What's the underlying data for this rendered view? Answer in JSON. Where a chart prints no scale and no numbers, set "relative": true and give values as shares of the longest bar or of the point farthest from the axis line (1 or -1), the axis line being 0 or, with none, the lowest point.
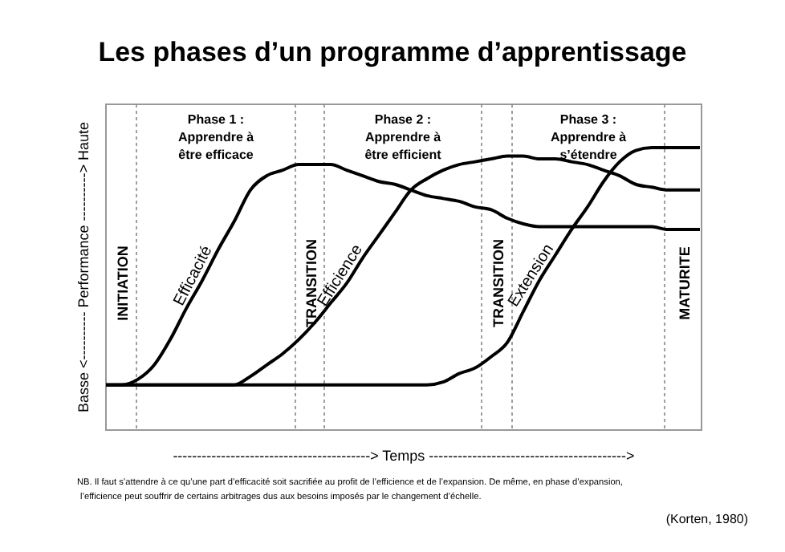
{
  "chart_data": {
    "type": "line",
    "title": "Les phases d’un programme d’apprentissage",
    "xlabel": "-----------------------------------------> Temps ----------------------------------------->",
    "ylabel": "Basse <---------- Performance ----------> Haute",
    "relative": true,
    "legend": false,
    "line_style": "solid",
    "marker": "none",
    "categories": [
      null,
      null,
      null,
      null,
      null,
      null,
      null,
      null,
      null,
      null,
      null,
      null,
      null,
      null,
      null,
      null,
      null,
      null,
      null,
      null,
      null,
      null,
      null,
      null,
      null,
      null,
      null,
      null,
      null,
      null,
      null,
      null,
      null,
      null,
      null,
      null,
      null,
      null
    ],
    "series": [
      {
        "name": "Efficacité",
        "color": "#000000",
        "values": [
          0.16,
          0.16,
          0.18,
          0.23,
          0.32,
          0.43,
          0.53,
          0.64,
          0.74,
          0.85,
          0.9,
          0.92,
          0.94,
          0.94,
          0.94,
          0.92,
          0.9,
          0.88,
          0.87,
          0.85,
          0.83,
          0.82,
          0.81,
          0.79,
          0.78,
          0.75,
          0.73,
          0.72,
          0.72,
          0.72,
          0.72,
          0.72,
          0.72,
          0.72,
          0.72,
          0.71,
          0.71,
          0.71
        ]
      },
      {
        "name": "Efficience",
        "color": "#000000",
        "values": [
          0.16,
          0.16,
          0.16,
          0.16,
          0.16,
          0.16,
          0.16,
          0.16,
          0.16,
          0.19,
          0.23,
          0.27,
          0.32,
          0.38,
          0.45,
          0.52,
          0.61,
          0.69,
          0.77,
          0.85,
          0.89,
          0.92,
          0.94,
          0.95,
          0.96,
          0.97,
          0.97,
          0.96,
          0.96,
          0.95,
          0.94,
          0.92,
          0.9,
          0.87,
          0.86,
          0.85,
          0.85,
          0.85
        ]
      },
      {
        "name": "Extension",
        "color": "#000000",
        "values": [
          0.16,
          0.16,
          0.16,
          0.16,
          0.16,
          0.16,
          0.16,
          0.16,
          0.16,
          0.16,
          0.16,
          0.16,
          0.16,
          0.16,
          0.16,
          0.16,
          0.16,
          0.16,
          0.16,
          0.16,
          0.16,
          0.17,
          0.2,
          0.22,
          0.26,
          0.31,
          0.42,
          0.53,
          0.62,
          0.71,
          0.79,
          0.88,
          0.95,
          0.99,
          1,
          1,
          1,
          1
        ]
      }
    ],
    "annotations": [
      "INITIATION",
      "Phase 1 :\nApprendre à\nêtre efficace",
      "TRANSITION",
      "Phase 2 :\nApprendre à\nêtre efficient",
      "TRANSITION",
      "Phase 3 :\nApprendre à\ns’étendre",
      "MATURITE",
      "NB. Il faut s’attendre à ce qu’une part d’efficacité soit sacrifiée au profit de l’efficience et de l’expansion.  De même, en phase d’expansion, l’efficience peut souffrir de certains arbitrages dus aux besoins imposés par le changement d’échelle.",
      "(Korten, 1980)"
    ]
  }
}
